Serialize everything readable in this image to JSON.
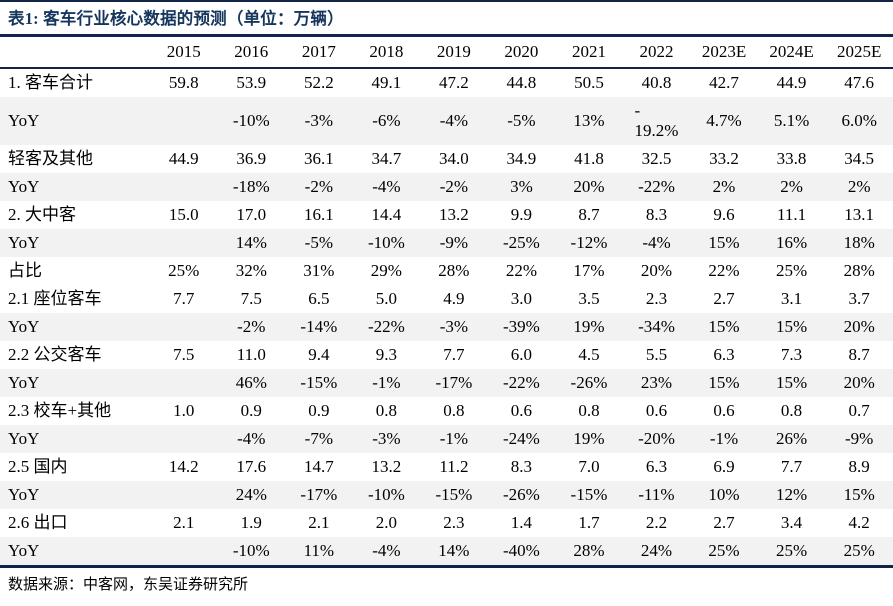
{
  "title": "表1: 客车行业核心数据的预测（单位：万辆）",
  "source": "数据来源：中客网，东吴证券研究所",
  "colors": {
    "title_navy": "#17365d",
    "rule_dark": "#122447",
    "band_gray": "#f2f2f2",
    "text": "#000000"
  },
  "table": {
    "corner_label": "",
    "years": [
      "2015",
      "2016",
      "2017",
      "2018",
      "2019",
      "2020",
      "2021",
      "2022",
      "2023E",
      "2024E",
      "2025E"
    ],
    "rows": [
      {
        "label": "1. 客车合计",
        "shaded": false,
        "values": [
          "59.8",
          "53.9",
          "52.2",
          "49.1",
          "47.2",
          "44.8",
          "50.5",
          "40.8",
          "42.7",
          "44.9",
          "47.6"
        ]
      },
      {
        "label": "YoY",
        "shaded": true,
        "values": [
          "",
          "-10%",
          "-3%",
          "-6%",
          "-4%",
          "-5%",
          "13%",
          "-\n19.2%",
          "4.7%",
          "5.1%",
          "6.0%"
        ]
      },
      {
        "label": "轻客及其他",
        "shaded": false,
        "values": [
          "44.9",
          "36.9",
          "36.1",
          "34.7",
          "34.0",
          "34.9",
          "41.8",
          "32.5",
          "33.2",
          "33.8",
          "34.5"
        ]
      },
      {
        "label": "YoY",
        "shaded": true,
        "values": [
          "",
          "-18%",
          "-2%",
          "-4%",
          "-2%",
          "3%",
          "20%",
          "-22%",
          "2%",
          "2%",
          "2%"
        ]
      },
      {
        "label": "2. 大中客",
        "shaded": false,
        "values": [
          "15.0",
          "17.0",
          "16.1",
          "14.4",
          "13.2",
          "9.9",
          "8.7",
          "8.3",
          "9.6",
          "11.1",
          "13.1"
        ]
      },
      {
        "label": "YoY",
        "shaded": true,
        "values": [
          "",
          "14%",
          "-5%",
          "-10%",
          "-9%",
          "-25%",
          "-12%",
          "-4%",
          "15%",
          "16%",
          "18%"
        ]
      },
      {
        "label": "占比",
        "shaded": false,
        "values": [
          "25%",
          "32%",
          "31%",
          "29%",
          "28%",
          "22%",
          "17%",
          "20%",
          "22%",
          "25%",
          "28%"
        ]
      },
      {
        "label": "2.1 座位客车",
        "shaded": false,
        "values": [
          "7.7",
          "7.5",
          "6.5",
          "5.0",
          "4.9",
          "3.0",
          "3.5",
          "2.3",
          "2.7",
          "3.1",
          "3.7"
        ]
      },
      {
        "label": "YoY",
        "shaded": true,
        "values": [
          "",
          "-2%",
          "-14%",
          "-22%",
          "-3%",
          "-39%",
          "19%",
          "-34%",
          "15%",
          "15%",
          "20%"
        ]
      },
      {
        "label": "2.2 公交客车",
        "shaded": false,
        "values": [
          "7.5",
          "11.0",
          "9.4",
          "9.3",
          "7.7",
          "6.0",
          "4.5",
          "5.5",
          "6.3",
          "7.3",
          "8.7"
        ]
      },
      {
        "label": "YoY",
        "shaded": true,
        "values": [
          "",
          "46%",
          "-15%",
          "-1%",
          "-17%",
          "-22%",
          "-26%",
          "23%",
          "15%",
          "15%",
          "20%"
        ]
      },
      {
        "label": "2.3 校车+其他",
        "shaded": false,
        "values": [
          "1.0",
          "0.9",
          "0.9",
          "0.8",
          "0.8",
          "0.6",
          "0.8",
          "0.6",
          "0.6",
          "0.8",
          "0.7"
        ]
      },
      {
        "label": "YoY",
        "shaded": true,
        "values": [
          "",
          "-4%",
          "-7%",
          "-3%",
          "-1%",
          "-24%",
          "19%",
          "-20%",
          "-1%",
          "26%",
          "-9%"
        ]
      },
      {
        "label": "2.5 国内",
        "shaded": false,
        "values": [
          "14.2",
          "17.6",
          "14.7",
          "13.2",
          "11.2",
          "8.3",
          "7.0",
          "6.3",
          "6.9",
          "7.7",
          "8.9"
        ]
      },
      {
        "label": "YoY",
        "shaded": true,
        "values": [
          "",
          "24%",
          "-17%",
          "-10%",
          "-15%",
          "-26%",
          "-15%",
          "-11%",
          "10%",
          "12%",
          "15%"
        ]
      },
      {
        "label": "2.6 出口",
        "shaded": false,
        "values": [
          "2.1",
          "1.9",
          "2.1",
          "2.0",
          "2.3",
          "1.4",
          "1.7",
          "2.2",
          "2.7",
          "3.4",
          "4.2"
        ]
      },
      {
        "label": "YoY",
        "shaded": true,
        "values": [
          "",
          "-10%",
          "11%",
          "-4%",
          "14%",
          "-40%",
          "28%",
          "24%",
          "25%",
          "25%",
          "25%"
        ]
      }
    ]
  }
}
